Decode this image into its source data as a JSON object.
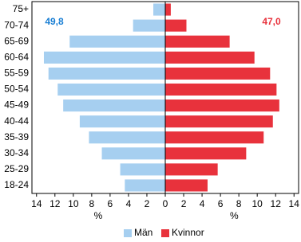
{
  "chart_data": {
    "type": "pyramid",
    "categories": [
      "75+",
      "70-74",
      "65-69",
      "60-64",
      "55-59",
      "50-54",
      "45-49",
      "40-44",
      "35-39",
      "30-34",
      "25-29",
      "18-24"
    ],
    "series": [
      {
        "name": "Män",
        "color": "#a6cff0",
        "values": [
          1.3,
          3.5,
          10.4,
          13.2,
          12.7,
          11.7,
          11.1,
          9.3,
          8.3,
          6.9,
          4.9,
          4.4
        ]
      },
      {
        "name": "Kvinnor",
        "color": "#e8323c",
        "values": [
          0.6,
          2.3,
          7.0,
          9.7,
          11.4,
          12.1,
          12.4,
          11.7,
          10.7,
          8.8,
          5.7,
          4.6
        ]
      }
    ],
    "xlim": [
      -14.5,
      14.5
    ],
    "xticks": [
      {
        "value": -14,
        "label": "14"
      },
      {
        "value": -12,
        "label": "12"
      },
      {
        "value": -10,
        "label": "10"
      },
      {
        "value": -8,
        "label": "8"
      },
      {
        "value": -6,
        "label": "6"
      },
      {
        "value": -4,
        "label": "4"
      },
      {
        "value": -2,
        "label": "2"
      },
      0,
      2,
      4,
      6,
      8,
      10,
      12,
      14
    ],
    "xlabels": [
      "%",
      "%"
    ],
    "annotations": [
      {
        "text": "49,8",
        "color": "#1a7fd4"
      },
      {
        "text": "47,0",
        "color": "#e8323c"
      }
    ],
    "legend": "bottom"
  }
}
